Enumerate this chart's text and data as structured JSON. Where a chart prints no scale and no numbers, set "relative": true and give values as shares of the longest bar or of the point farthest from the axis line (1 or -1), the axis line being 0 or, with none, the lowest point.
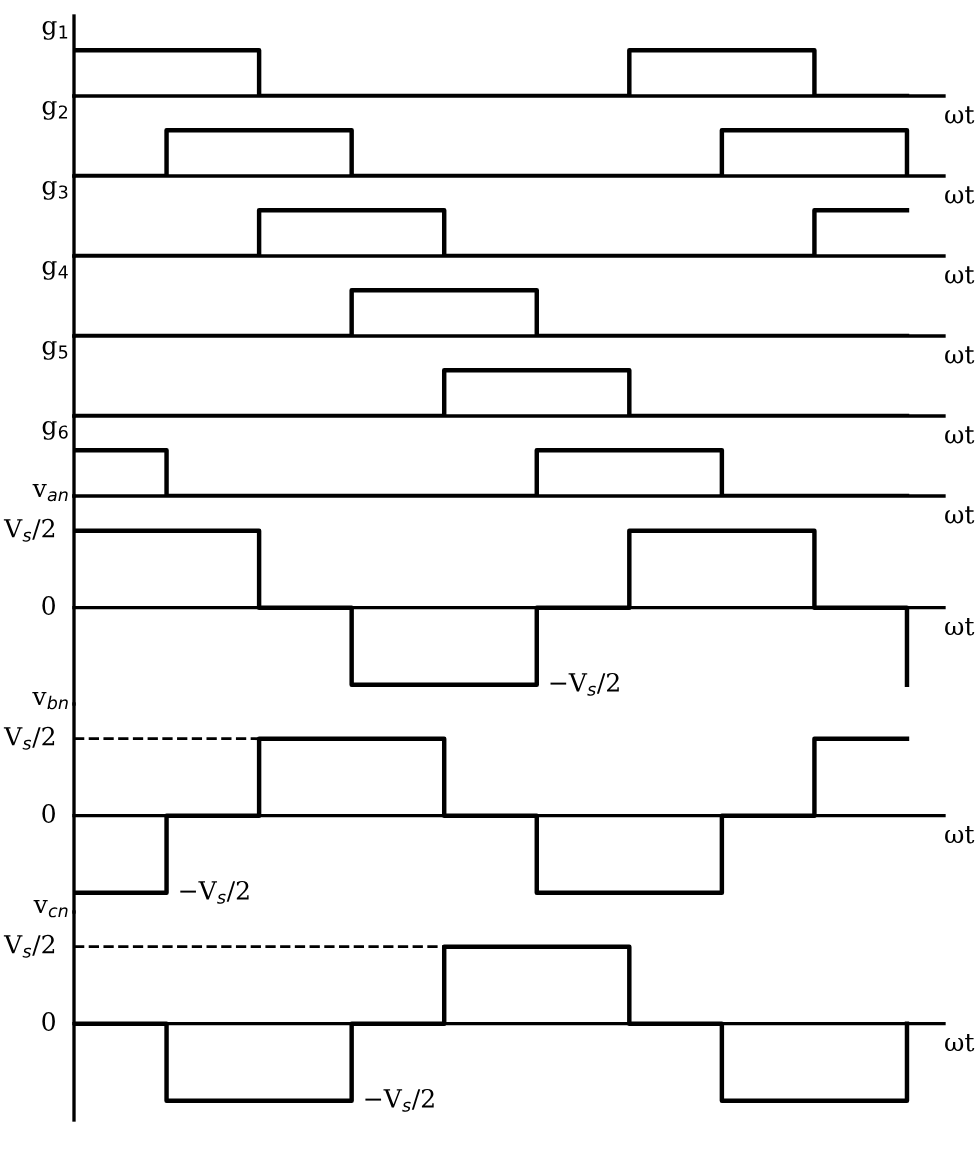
{
  "chart_data": [
    {
      "type": "step",
      "relative": true,
      "ylabel": "g$_{1}$",
      "xlabel": "ωt",
      "categories": [
        null,
        null,
        null,
        null,
        null,
        null,
        null,
        null,
        null,
        null
      ],
      "series": [
        {
          "color": "#000000",
          "values": [
            1,
            1,
            0,
            0,
            0,
            0,
            1,
            1,
            0,
            0
          ]
        }
      ]
    },
    {
      "type": "step",
      "relative": true,
      "ylabel": "g$_{2}$",
      "xlabel": "ωt",
      "categories": [
        null,
        null,
        null,
        null,
        null,
        null,
        null,
        null,
        null,
        null
      ],
      "series": [
        {
          "color": "#000000",
          "values": [
            0,
            1,
            1,
            0,
            0,
            0,
            0,
            1,
            1,
            0
          ]
        }
      ]
    },
    {
      "type": "step",
      "relative": true,
      "ylabel": "g$_{3}$",
      "xlabel": "ωt",
      "categories": [
        null,
        null,
        null,
        null,
        null,
        null,
        null,
        null,
        null,
        null
      ],
      "series": [
        {
          "color": "#000000",
          "values": [
            0,
            0,
            1,
            1,
            0,
            0,
            0,
            0,
            1,
            1
          ]
        }
      ]
    },
    {
      "type": "step",
      "relative": true,
      "ylabel": "g$_{4}$",
      "xlabel": "ωt",
      "categories": [
        null,
        null,
        null,
        null,
        null,
        null,
        null,
        null,
        null,
        null
      ],
      "series": [
        {
          "color": "#000000",
          "values": [
            0,
            0,
            0,
            1,
            1,
            0,
            0,
            0,
            0,
            0
          ]
        }
      ]
    },
    {
      "type": "step",
      "relative": true,
      "ylabel": "g$_{5}$",
      "xlabel": "ωt",
      "categories": [
        null,
        null,
        null,
        null,
        null,
        null,
        null,
        null,
        null,
        null
      ],
      "series": [
        {
          "color": "#000000",
          "values": [
            0,
            0,
            0,
            0,
            1,
            1,
            0,
            0,
            0,
            0
          ]
        }
      ]
    },
    {
      "type": "step",
      "relative": true,
      "ylabel": "g$_{6}$",
      "xlabel": "ωt",
      "categories": [
        null,
        null,
        null,
        null,
        null,
        null,
        null,
        null,
        null,
        null
      ],
      "series": [
        {
          "color": "#000000",
          "values": [
            1,
            0,
            0,
            0,
            0,
            1,
            1,
            0,
            0,
            0
          ]
        }
      ]
    },
    {
      "type": "step",
      "relative": true,
      "ylabel": "v$_{an}$",
      "xlabel": "ωt",
      "categories": [
        null,
        null,
        null,
        null,
        null,
        null,
        null,
        null,
        null,
        null
      ],
      "series": [
        {
          "color": "#000000",
          "values": [
            1,
            1,
            0,
            -1,
            -1,
            0,
            1,
            1,
            0,
            -1
          ]
        }
      ],
      "annotations": [
        "V$_{s}$/2",
        "0",
        "−V$_{s}$/2"
      ]
    },
    {
      "type": "step",
      "relative": true,
      "ylabel": "v$_{bn}$",
      "xlabel": "ωt",
      "categories": [
        null,
        null,
        null,
        null,
        null,
        null,
        null,
        null,
        null,
        null
      ],
      "series": [
        {
          "color": "#000000",
          "values": [
            -1,
            0,
            1,
            1,
            0,
            -1,
            -1,
            0,
            1,
            1
          ]
        }
      ],
      "annotations": [
        "V$_{s}$/2",
        "0",
        "−V$_{s}$/2"
      ],
      "ref_lines": [
        {
          "axis": "y",
          "value": 1,
          "line_style": "dashed",
          "color": "#000000"
        }
      ]
    },
    {
      "type": "step",
      "relative": true,
      "ylabel": "v$_{cn}$",
      "xlabel": "ωt",
      "categories": [
        null,
        null,
        null,
        null,
        null,
        null,
        null,
        null,
        null,
        null
      ],
      "series": [
        {
          "color": "#000000",
          "values": [
            0,
            -1,
            -1,
            0,
            1,
            1,
            0,
            -1,
            -1,
            0
          ]
        }
      ],
      "annotations": [
        "V$_{s}$/2",
        "0",
        "−V$_{s}$/2"
      ],
      "ref_lines": [
        {
          "axis": "y",
          "value": 1,
          "line_style": "dashed",
          "color": "#000000"
        }
      ]
    }
  ]
}
